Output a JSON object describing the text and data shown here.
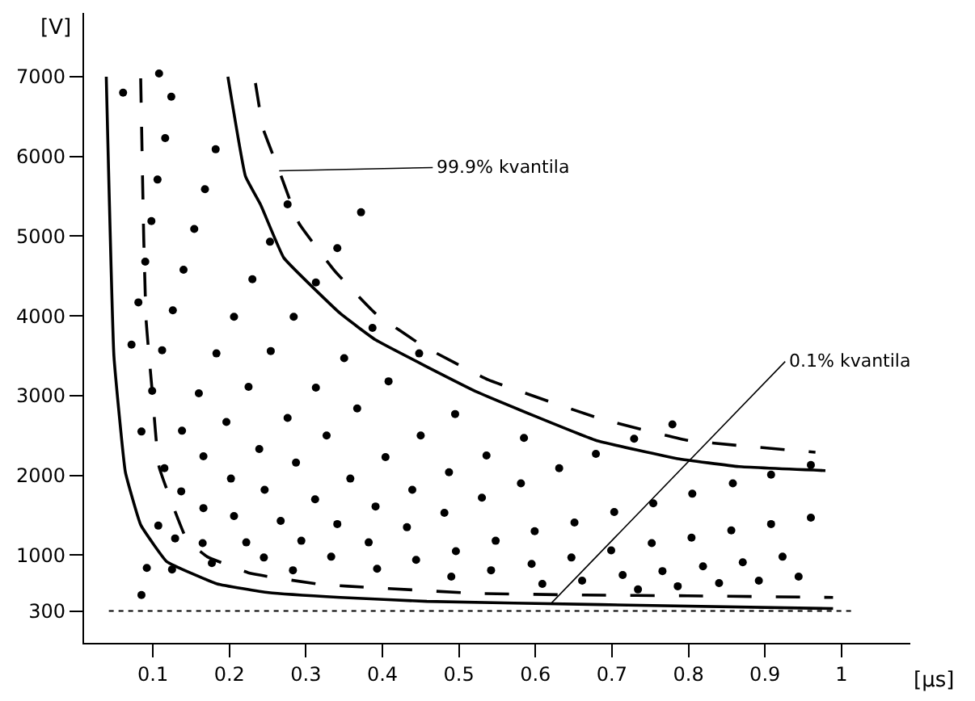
{
  "chart_data": {
    "type": "scatter",
    "xlabel": "[µs]",
    "ylabel": "[V]",
    "xlim": [
      0.01,
      1.09
    ],
    "ylim": [
      -100,
      7800
    ],
    "xticks": [
      0.1,
      0.2,
      0.3,
      0.4,
      0.5,
      0.6,
      0.7,
      0.8,
      0.9,
      1
    ],
    "yticks": [
      300,
      1000,
      2000,
      3000,
      4000,
      5000,
      6000,
      7000
    ],
    "ref_lines": [
      {
        "axis": "y",
        "value": 300,
        "line_style": "dotted",
        "color": "#000000"
      }
    ],
    "annotations": [
      {
        "text": "99.9% kvantila",
        "x": 0.265,
        "y": 5820
      },
      {
        "text": "0.1% kvantila",
        "x": 0.62,
        "y": 390
      }
    ],
    "series": [
      {
        "marker": "circle",
        "color": "#000000",
        "x": [
          0.108,
          0.061,
          0.124,
          0.116,
          0.182,
          0.106,
          0.168,
          0.276,
          0.372,
          0.098,
          0.154,
          0.253,
          0.341,
          0.09,
          0.14,
          0.23,
          0.313,
          0.081,
          0.126,
          0.206,
          0.284,
          0.387,
          0.072,
          0.112,
          0.183,
          0.254,
          0.448,
          0.35,
          0.408,
          0.099,
          0.16,
          0.225,
          0.313,
          0.085,
          0.138,
          0.196,
          0.276,
          0.327,
          0.115,
          0.166,
          0.239,
          0.287,
          0.137,
          0.202,
          0.246,
          0.312,
          0.341,
          0.166,
          0.206,
          0.267,
          0.107,
          0.129,
          0.165,
          0.222,
          0.294,
          0.333,
          0.245,
          0.177,
          0.092,
          0.125,
          0.283,
          0.085,
          0.367,
          0.495,
          0.45,
          0.585,
          0.679,
          0.404,
          0.536,
          0.631,
          0.358,
          0.487,
          0.581,
          0.439,
          0.53,
          0.391,
          0.481,
          0.651,
          0.432,
          0.599,
          0.382,
          0.548,
          0.444,
          0.496,
          0.647,
          0.393,
          0.542,
          0.595,
          0.49,
          0.661,
          0.609,
          0.779,
          0.729,
          0.96,
          0.908,
          0.858,
          0.805,
          0.754,
          0.703,
          0.96,
          0.908,
          0.856,
          0.804,
          0.752,
          0.699,
          0.923,
          0.871,
          0.819,
          0.766,
          0.714,
          0.944,
          0.892,
          0.84,
          0.786,
          0.734
        ],
        "values": [
          7040,
          6800,
          6750,
          6230,
          6090,
          5710,
          5590,
          5400,
          5300,
          5190,
          5090,
          4930,
          4850,
          4680,
          4580,
          4460,
          4420,
          4170,
          4070,
          3990,
          3990,
          3850,
          3640,
          3570,
          3530,
          3560,
          3530,
          3470,
          3180,
          3060,
          3030,
          3110,
          3100,
          2550,
          2560,
          2670,
          2720,
          2500,
          2090,
          2240,
          2330,
          2160,
          1800,
          1960,
          1820,
          1700,
          1390,
          1590,
          1490,
          1430,
          1370,
          1210,
          1150,
          1160,
          1180,
          980,
          970,
          900,
          840,
          820,
          810,
          500,
          2840,
          2770,
          2500,
          2470,
          2270,
          2230,
          2250,
          2090,
          1960,
          2040,
          1900,
          1820,
          1720,
          1610,
          1530,
          1410,
          1350,
          1300,
          1160,
          1180,
          940,
          1050,
          970,
          830,
          810,
          890,
          730,
          680,
          640,
          2640,
          2460,
          2130,
          2010,
          1900,
          1770,
          1650,
          1540,
          1470,
          1390,
          1310,
          1220,
          1150,
          1060,
          980,
          910,
          860,
          800,
          750,
          730,
          680,
          650,
          610,
          570
        ]
      },
      {
        "type": "line",
        "line_style": "solid",
        "color": "#000000",
        "x": [
          0.039,
          0.049,
          0.064,
          0.084,
          0.118,
          0.184,
          0.251,
          0.345,
          0.458,
          0.685,
          0.989
        ],
        "values": [
          7000,
          3500,
          2040,
          1380,
          920,
          640,
          530,
          470,
          420,
          380,
          330
        ]
      },
      {
        "type": "line",
        "line_style": "dashed",
        "color": "#000000",
        "x": [
          0.084,
          0.088,
          0.091,
          0.094,
          0.099,
          0.108,
          0.144,
          0.171,
          0.228,
          0.321,
          0.355,
          0.525,
          0.665,
          0.799,
          0.989
        ],
        "values": [
          6980,
          4960,
          3960,
          3600,
          3060,
          2110,
          1200,
          980,
          770,
          630,
          610,
          520,
          500,
          490,
          470
        ]
      },
      {
        "type": "line",
        "line_style": "solid",
        "color": "#000000",
        "x": [
          0.198,
          0.221,
          0.241,
          0.271,
          0.345,
          0.391,
          0.525,
          0.679,
          0.786,
          0.866,
          0.979
        ],
        "values": [
          7000,
          5750,
          5390,
          4730,
          4030,
          3700,
          3040,
          2440,
          2210,
          2110,
          2060
        ]
      },
      {
        "type": "line",
        "line_style": "dashed",
        "color": "#000000",
        "x": [
          0.234,
          0.244,
          0.265,
          0.291,
          0.338,
          0.391,
          0.452,
          0.538,
          0.685,
          0.799,
          0.966
        ],
        "values": [
          6920,
          6350,
          5820,
          5160,
          4560,
          4030,
          3630,
          3200,
          2710,
          2440,
          2290
        ]
      }
    ]
  }
}
